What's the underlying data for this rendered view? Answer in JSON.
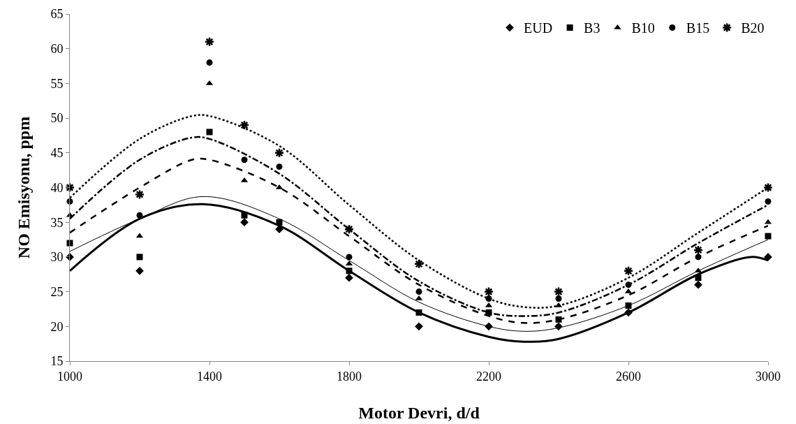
{
  "chart_data": {
    "type": "scatter",
    "xlabel": "Motor Devri, d/d",
    "ylabel": "NO Emisyonu, ppm",
    "x": [
      1000,
      1200,
      1400,
      1500,
      1600,
      1800,
      2000,
      2200,
      2400,
      2600,
      2800,
      3000
    ],
    "xlim": [
      1000,
      3000
    ],
    "xticks": [
      1000,
      1400,
      1800,
      2200,
      2600,
      3000
    ],
    "ylim": [
      15,
      65
    ],
    "yticks": [
      15,
      20,
      25,
      30,
      35,
      40,
      45,
      50,
      55,
      60,
      65
    ],
    "grid": false,
    "legend": "top right",
    "series": [
      {
        "name": "EUD",
        "color": "#000000",
        "marker": "diamond",
        "values": [
          30,
          28,
          null,
          35,
          34,
          27,
          20,
          20,
          20,
          22,
          26,
          30
        ]
      },
      {
        "name": "B3",
        "color": "#000000",
        "marker": "square",
        "values": [
          32,
          30,
          48,
          36,
          35,
          28,
          22,
          22,
          21,
          23,
          27,
          33
        ]
      },
      {
        "name": "B10",
        "color": "#000000",
        "marker": "triangle",
        "values": [
          36,
          33,
          55,
          41,
          40,
          29,
          24,
          23,
          23,
          25,
          28,
          35
        ]
      },
      {
        "name": "B15",
        "color": "#000000",
        "marker": "circle",
        "values": [
          38,
          36,
          58,
          44,
          43,
          30,
          25,
          24,
          24,
          26,
          30,
          38
        ]
      },
      {
        "name": "B20",
        "color": "#000000",
        "marker": "cross",
        "values": [
          40,
          39,
          61,
          49,
          45,
          34,
          29,
          25,
          25,
          28,
          31,
          40
        ]
      },
      {
        "type": "line",
        "color": "#000000",
        "line_style": "solid",
        "x": [
          1000,
          1200,
          1380,
          1600,
          1800,
          2000,
          2200,
          2300,
          2400,
          2600,
          2800,
          2950,
          3000
        ],
        "values": [
          28,
          35.5,
          37.6,
          34.5,
          28,
          22,
          18.5,
          17.8,
          18.2,
          22,
          27.5,
          30,
          29.5
        ]
      },
      {
        "type": "line",
        "color": "#000000",
        "line_style": "solid",
        "x": [
          1000,
          1200,
          1380,
          1600,
          1800,
          2000,
          2200,
          2300,
          2400,
          2600,
          2800,
          3000
        ],
        "values": [
          30.8,
          35.5,
          38.7,
          35.5,
          29.5,
          23.5,
          20,
          19.3,
          19.8,
          23,
          28,
          32.5
        ]
      },
      {
        "type": "line",
        "color": "#000000",
        "line_style": "dashed",
        "x": [
          1000,
          1200,
          1350,
          1400,
          1600,
          1800,
          2000,
          2200,
          2300,
          2400,
          2600,
          2800,
          3000
        ],
        "values": [
          33.5,
          40,
          44,
          44,
          40,
          33,
          26,
          21.5,
          20.5,
          21,
          24.5,
          30,
          34.5
        ]
      },
      {
        "type": "line",
        "color": "#000000",
        "line_style": "dashdot",
        "x": [
          1000,
          1200,
          1350,
          1400,
          1600,
          1800,
          2000,
          2200,
          2300,
          2400,
          2600,
          2800,
          3000
        ],
        "values": [
          35.5,
          44,
          47.2,
          47,
          42,
          34,
          26.5,
          22,
          21.5,
          22,
          26,
          32,
          37.5
        ]
      },
      {
        "type": "line",
        "color": "#000000",
        "line_style": "dotted",
        "x": [
          1000,
          1200,
          1350,
          1400,
          1600,
          1800,
          2000,
          2200,
          2300,
          2400,
          2600,
          2800,
          3000
        ],
        "values": [
          38.5,
          47,
          50.3,
          50.3,
          46,
          37.5,
          29.5,
          24,
          22.8,
          23,
          27,
          33.5,
          40
        ]
      }
    ]
  }
}
